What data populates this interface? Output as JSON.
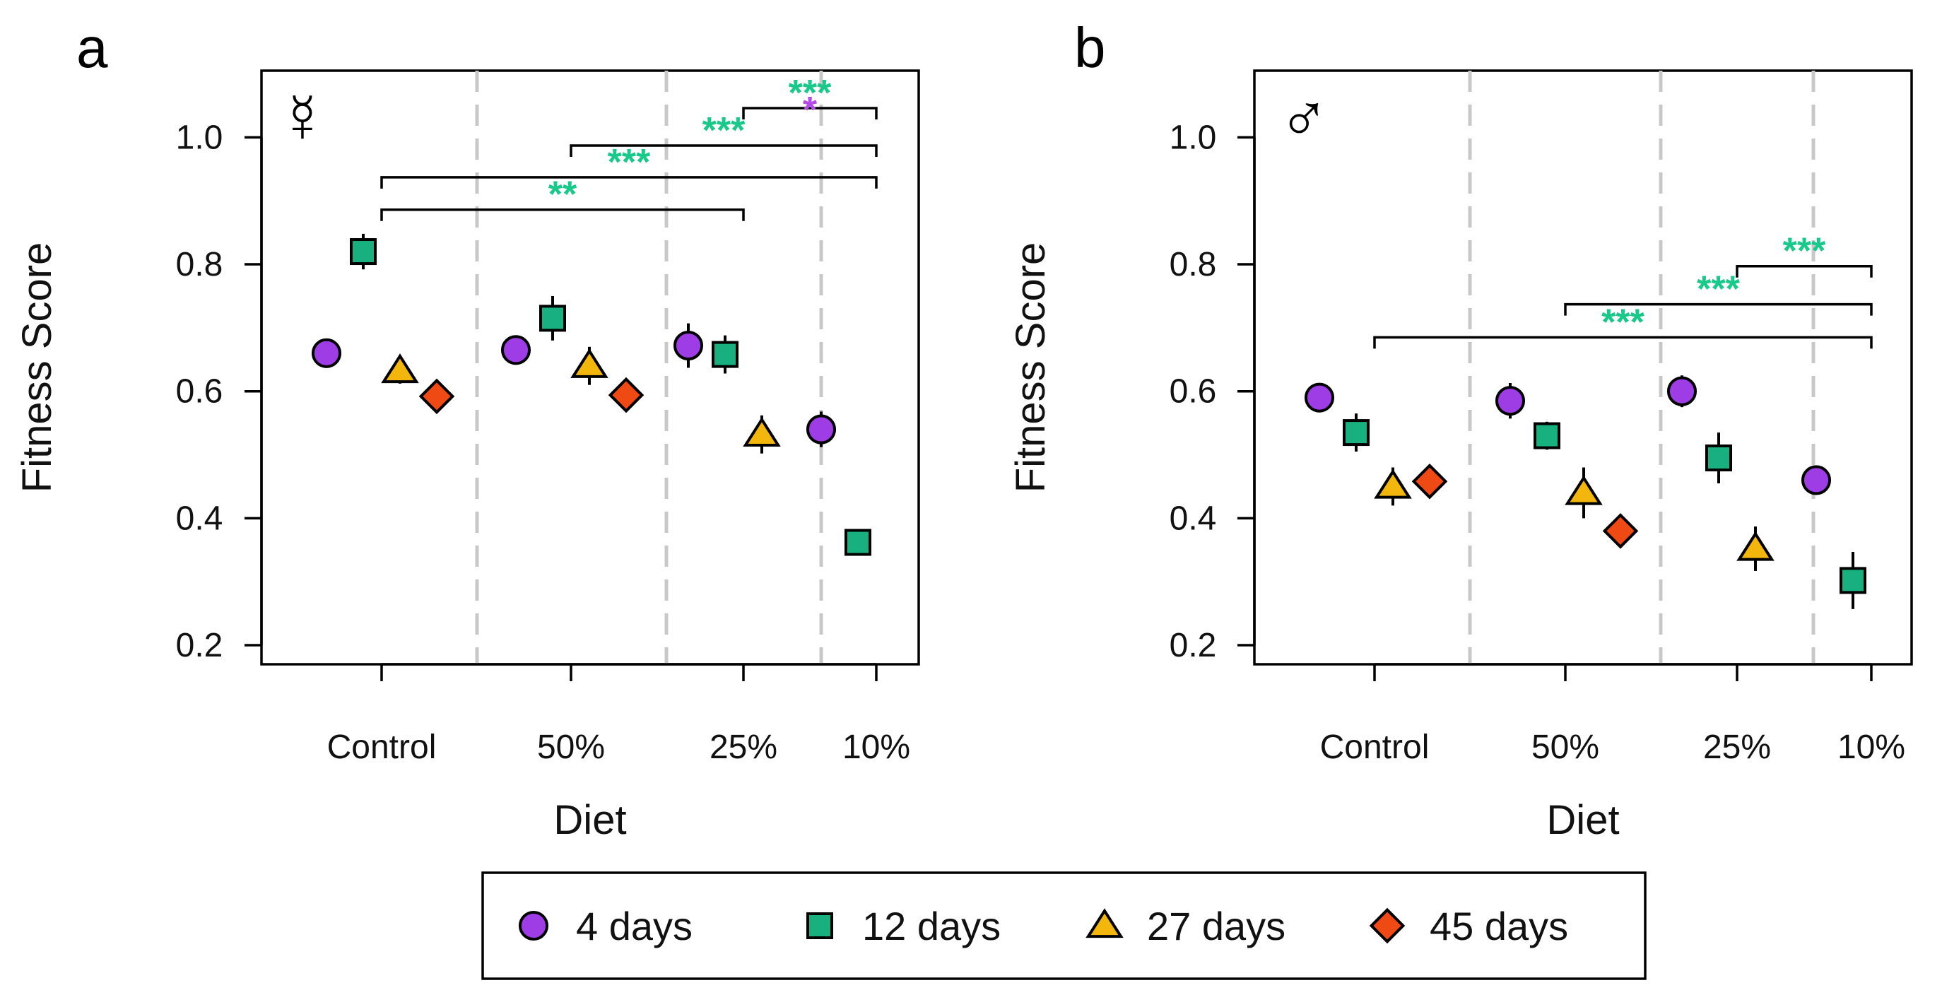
{
  "colors": {
    "4 days": "#9e3ce6",
    "12 days": "#18b07e",
    "27 days": "#f2b60c",
    "45 days": "#f04a14",
    "sig_green": "#18c98a",
    "sig_purple": "#b44ae8",
    "divider": "#c8c8c8"
  },
  "chart_data": [
    {
      "type": "scatter",
      "panel_label": "a",
      "sex_symbol": "☿",
      "xlabel": "Diet",
      "ylabel": "Fitness Score",
      "ylim": [
        0.17,
        1.105
      ],
      "yticks": [
        "0.2",
        "0.4",
        "0.6",
        "0.8",
        "1.0"
      ],
      "categories": [
        "Control",
        "50%",
        "25%",
        "10%"
      ],
      "series": [
        {
          "name": "4 days",
          "shape": "circle",
          "values": [
            0.66,
            0.665,
            0.672,
            0.54
          ],
          "errors": [
            0.022,
            0.022,
            0.035,
            0.028
          ]
        },
        {
          "name": "12 days",
          "shape": "square",
          "values": [
            0.82,
            0.715,
            0.658,
            0.362
          ],
          "errors": [
            0.028,
            0.035,
            0.03,
            0.018
          ]
        },
        {
          "name": "27 days",
          "shape": "triangle",
          "values": [
            0.632,
            0.64,
            0.532,
            null
          ],
          "errors": [
            0.02,
            0.03,
            0.03,
            null
          ]
        },
        {
          "name": "45 days",
          "shape": "diamond",
          "values": [
            0.592,
            0.594,
            null,
            null
          ],
          "errors": [
            0.02,
            0.025,
            null,
            null
          ]
        }
      ],
      "significance": [
        {
          "from": "Control",
          "to": "25%",
          "level": 0.886,
          "labels": [
            {
              "text": "**",
              "color": "green"
            }
          ]
        },
        {
          "from": "Control",
          "to": "10%",
          "level": 0.937,
          "labels": [
            {
              "text": "***",
              "color": "green"
            }
          ]
        },
        {
          "from": "50%",
          "to": "10%",
          "level": 0.987,
          "labels": [
            {
              "text": "***",
              "color": "green"
            }
          ]
        },
        {
          "from": "25%",
          "to": "10%",
          "level": 1.046,
          "labels": [
            {
              "text": "***",
              "color": "green"
            },
            {
              "text": "*",
              "color": "purple"
            }
          ]
        }
      ]
    },
    {
      "type": "scatter",
      "panel_label": "b",
      "sex_symbol": "♂",
      "xlabel": "Diet",
      "ylabel": "Fitness Score",
      "ylim": [
        0.17,
        1.105
      ],
      "yticks": [
        "0.2",
        "0.4",
        "0.6",
        "0.8",
        "1.0"
      ],
      "categories": [
        "Control",
        "50%",
        "25%",
        "10%"
      ],
      "series": [
        {
          "name": "4 days",
          "shape": "circle",
          "values": [
            0.59,
            0.585,
            0.6,
            0.46
          ],
          "errors": [
            0.02,
            0.028,
            0.025,
            0.022
          ]
        },
        {
          "name": "12 days",
          "shape": "square",
          "values": [
            0.535,
            0.53,
            0.495,
            0.302
          ],
          "errors": [
            0.03,
            0.022,
            0.04,
            0.045
          ]
        },
        {
          "name": "27 days",
          "shape": "triangle",
          "values": [
            0.45,
            0.44,
            0.352,
            null
          ],
          "errors": [
            0.03,
            0.04,
            0.035,
            null
          ]
        },
        {
          "name": "45 days",
          "shape": "diamond",
          "values": [
            0.458,
            0.38,
            null,
            null
          ],
          "errors": [
            0.015,
            0.018,
            null,
            null
          ]
        }
      ],
      "significance": [
        {
          "from": "Control",
          "to": "10%",
          "level": 0.685,
          "labels": [
            {
              "text": "***",
              "color": "green"
            }
          ]
        },
        {
          "from": "50%",
          "to": "10%",
          "level": 0.737,
          "labels": [
            {
              "text": "***",
              "color": "green"
            }
          ]
        },
        {
          "from": "25%",
          "to": "10%",
          "level": 0.797,
          "labels": [
            {
              "text": "***",
              "color": "green"
            }
          ]
        }
      ]
    }
  ],
  "legend": [
    {
      "name": "4 days",
      "label": "4 days",
      "shape": "circle"
    },
    {
      "name": "12 days",
      "label": "12 days",
      "shape": "square"
    },
    {
      "name": "27 days",
      "label": "27 days",
      "shape": "triangle"
    },
    {
      "name": "45 days",
      "label": "45 days",
      "shape": "diamond"
    }
  ]
}
